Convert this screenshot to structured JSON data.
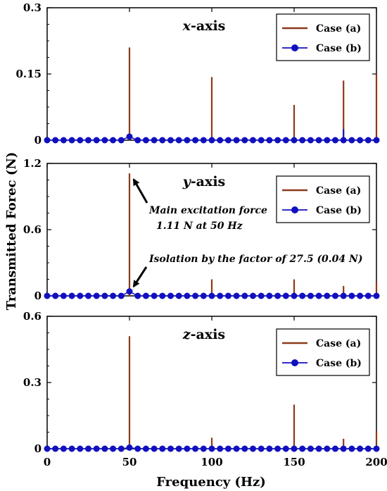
{
  "chart_data": {
    "type": "bar",
    "xlabel": "Frequency (Hz)",
    "ylabel": "Transmitted Forec (N)",
    "xlim": [
      0,
      200
    ],
    "x_ticks": [
      "0",
      "50",
      "100",
      "150",
      "200"
    ],
    "legend_position": "top-right",
    "panels": [
      {
        "title_var": "x",
        "title_rest": "-axis",
        "ylim": [
          0,
          0.3
        ],
        "y_ticks": [
          "0",
          "0.15",
          "0.3"
        ],
        "series": [
          {
            "name": "Case (a)",
            "color": "#8B3A1A",
            "style": "stem",
            "x": [
              50,
              100,
              150,
              180,
              200
            ],
            "values": [
              0.21,
              0.143,
              0.08,
              0.135,
              0.15
            ]
          },
          {
            "name": "Case (b)",
            "color": "#1010C0",
            "style": "line-marker",
            "x": [
              0,
              5,
              10,
              15,
              20,
              25,
              30,
              35,
              40,
              45,
              50,
              55,
              60,
              65,
              70,
              75,
              80,
              85,
              90,
              95,
              100,
              105,
              110,
              115,
              120,
              125,
              130,
              135,
              140,
              145,
              150,
              155,
              160,
              165,
              170,
              175,
              180,
              185,
              190,
              195,
              200
            ],
            "values": [
              0,
              0,
              0,
              0,
              0,
              0,
              0,
              0,
              0,
              0,
              0.008,
              0,
              0,
              0,
              0,
              0,
              0,
              0,
              0,
              0,
              0,
              0,
              0,
              0,
              0,
              0,
              0,
              0,
              0,
              0,
              0,
              0,
              0,
              0,
              0,
              0,
              0,
              0,
              0,
              0,
              0
            ],
            "spikes": [
              {
                "x": 180,
                "value": 0.025
              }
            ]
          }
        ],
        "annotations": []
      },
      {
        "title_var": "y",
        "title_rest": "-axis",
        "ylim": [
          0,
          1.2
        ],
        "y_ticks": [
          "0",
          "0.6",
          "1.2"
        ],
        "series": [
          {
            "name": "Case (a)",
            "color": "#8B3A1A",
            "style": "stem",
            "x": [
              50,
              100,
              150,
              180,
              200
            ],
            "values": [
              1.11,
              0.15,
              0.15,
              0.09,
              0.13
            ]
          },
          {
            "name": "Case (b)",
            "color": "#1010C0",
            "style": "line-marker",
            "x": [
              0,
              5,
              10,
              15,
              20,
              25,
              30,
              35,
              40,
              45,
              50,
              55,
              60,
              65,
              70,
              75,
              80,
              85,
              90,
              95,
              100,
              105,
              110,
              115,
              120,
              125,
              130,
              135,
              140,
              145,
              150,
              155,
              160,
              165,
              170,
              175,
              180,
              185,
              190,
              195,
              200
            ],
            "values": [
              0,
              0,
              0,
              0,
              0,
              0,
              0,
              0,
              0,
              0,
              0.04,
              0,
              0,
              0,
              0,
              0,
              0,
              0,
              0,
              0,
              0,
              0,
              0,
              0,
              0,
              0,
              0,
              0,
              0,
              0,
              0,
              0,
              0,
              0,
              0,
              0,
              0,
              0,
              0,
              0,
              0
            ],
            "spikes": []
          }
        ],
        "annotations": [
          {
            "lines": [
              "Main excitation force",
              "1.11 N at 50 Hz"
            ],
            "arrow_to": {
              "x": 50,
              "y": 1.08
            }
          },
          {
            "lines": [
              "Isolation by the factor of 27.5 (0.04 N)"
            ],
            "arrow_to": {
              "x": 50,
              "y": 0.06
            }
          }
        ]
      },
      {
        "title_var": "z",
        "title_rest": "-axis",
        "ylim": [
          0,
          0.6
        ],
        "y_ticks": [
          "0",
          "0.3",
          "0.6"
        ],
        "series": [
          {
            "name": "Case (a)",
            "color": "#8B3A1A",
            "style": "stem",
            "x": [
              50,
              100,
              150,
              180,
              200
            ],
            "values": [
              0.51,
              0.05,
              0.2,
              0.045,
              0.08
            ]
          },
          {
            "name": "Case (b)",
            "color": "#1010C0",
            "style": "line-marker",
            "x": [
              0,
              5,
              10,
              15,
              20,
              25,
              30,
              35,
              40,
              45,
              50,
              55,
              60,
              65,
              70,
              75,
              80,
              85,
              90,
              95,
              100,
              105,
              110,
              115,
              120,
              125,
              130,
              135,
              140,
              145,
              150,
              155,
              160,
              165,
              170,
              175,
              180,
              185,
              190,
              195,
              200
            ],
            "values": [
              0,
              0,
              0,
              0,
              0,
              0,
              0,
              0,
              0,
              0,
              0.005,
              0,
              0,
              0,
              0,
              0,
              0,
              0,
              0,
              0,
              0,
              0,
              0,
              0,
              0,
              0,
              0,
              0,
              0,
              0,
              0,
              0,
              0,
              0,
              0,
              0,
              0,
              0,
              0,
              0,
              0
            ],
            "spikes": []
          }
        ],
        "annotations": []
      }
    ]
  }
}
